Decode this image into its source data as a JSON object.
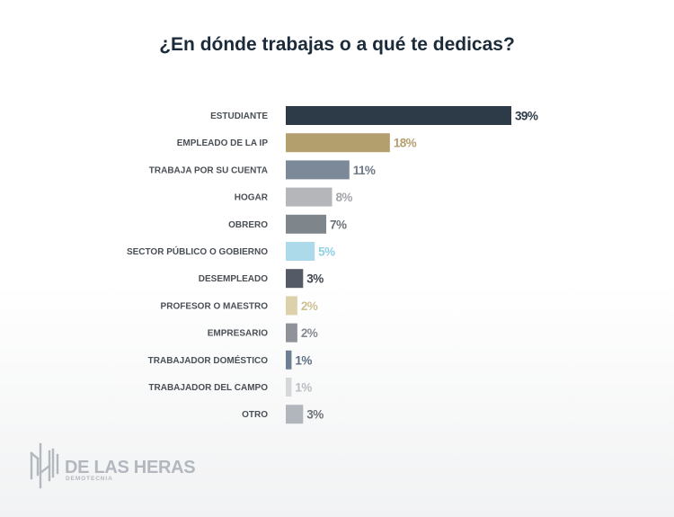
{
  "chart_data": {
    "type": "bar",
    "orientation": "horizontal",
    "title": "¿En dónde trabajas o a qué te dedicas?",
    "categories": [
      "ESTUDIANTE",
      "EMPLEADO DE LA IP",
      "TRABAJA POR SU CUENTA",
      "HOGAR",
      "OBRERO",
      "SECTOR PÚBLICO O GOBIERNO",
      "DESEMPLEADO",
      "PROFESOR O MAESTRO",
      "EMPRESARIO",
      "TRABAJADOR DOMÉSTICO",
      "TRABAJADOR DEL CAMPO",
      "OTRO"
    ],
    "values": [
      39,
      18,
      11,
      8,
      7,
      5,
      3,
      2,
      2,
      1,
      1,
      3
    ],
    "value_labels": [
      "39%",
      "18%",
      "11%",
      "8%",
      "7%",
      "5%",
      "3%",
      "2%",
      "2%",
      "1%",
      "1%",
      "3%"
    ],
    "bar_colors": [
      "#2d3a47",
      "#b39e6e",
      "#7c8999",
      "#b4b6ba",
      "#7e858b",
      "#acdaea",
      "#545a66",
      "#ddd1ac",
      "#8f9399",
      "#6e7f93",
      "#d5d7da",
      "#b1b6bd"
    ],
    "label_colors": [
      "#2d3a47",
      "#b39e6e",
      "#6d7887",
      "#a3a6aa",
      "#6d7278",
      "#8fcfe5",
      "#3f4550",
      "#cdbf92",
      "#858a90",
      "#5f6f82",
      "#b9bcc0",
      "#6d7278"
    ],
    "xlim": [
      0,
      39
    ],
    "grid": false,
    "legend": "none"
  },
  "logo": {
    "name": "DE LAS HERAS",
    "subtitle": "DEMOTECNIA"
  }
}
